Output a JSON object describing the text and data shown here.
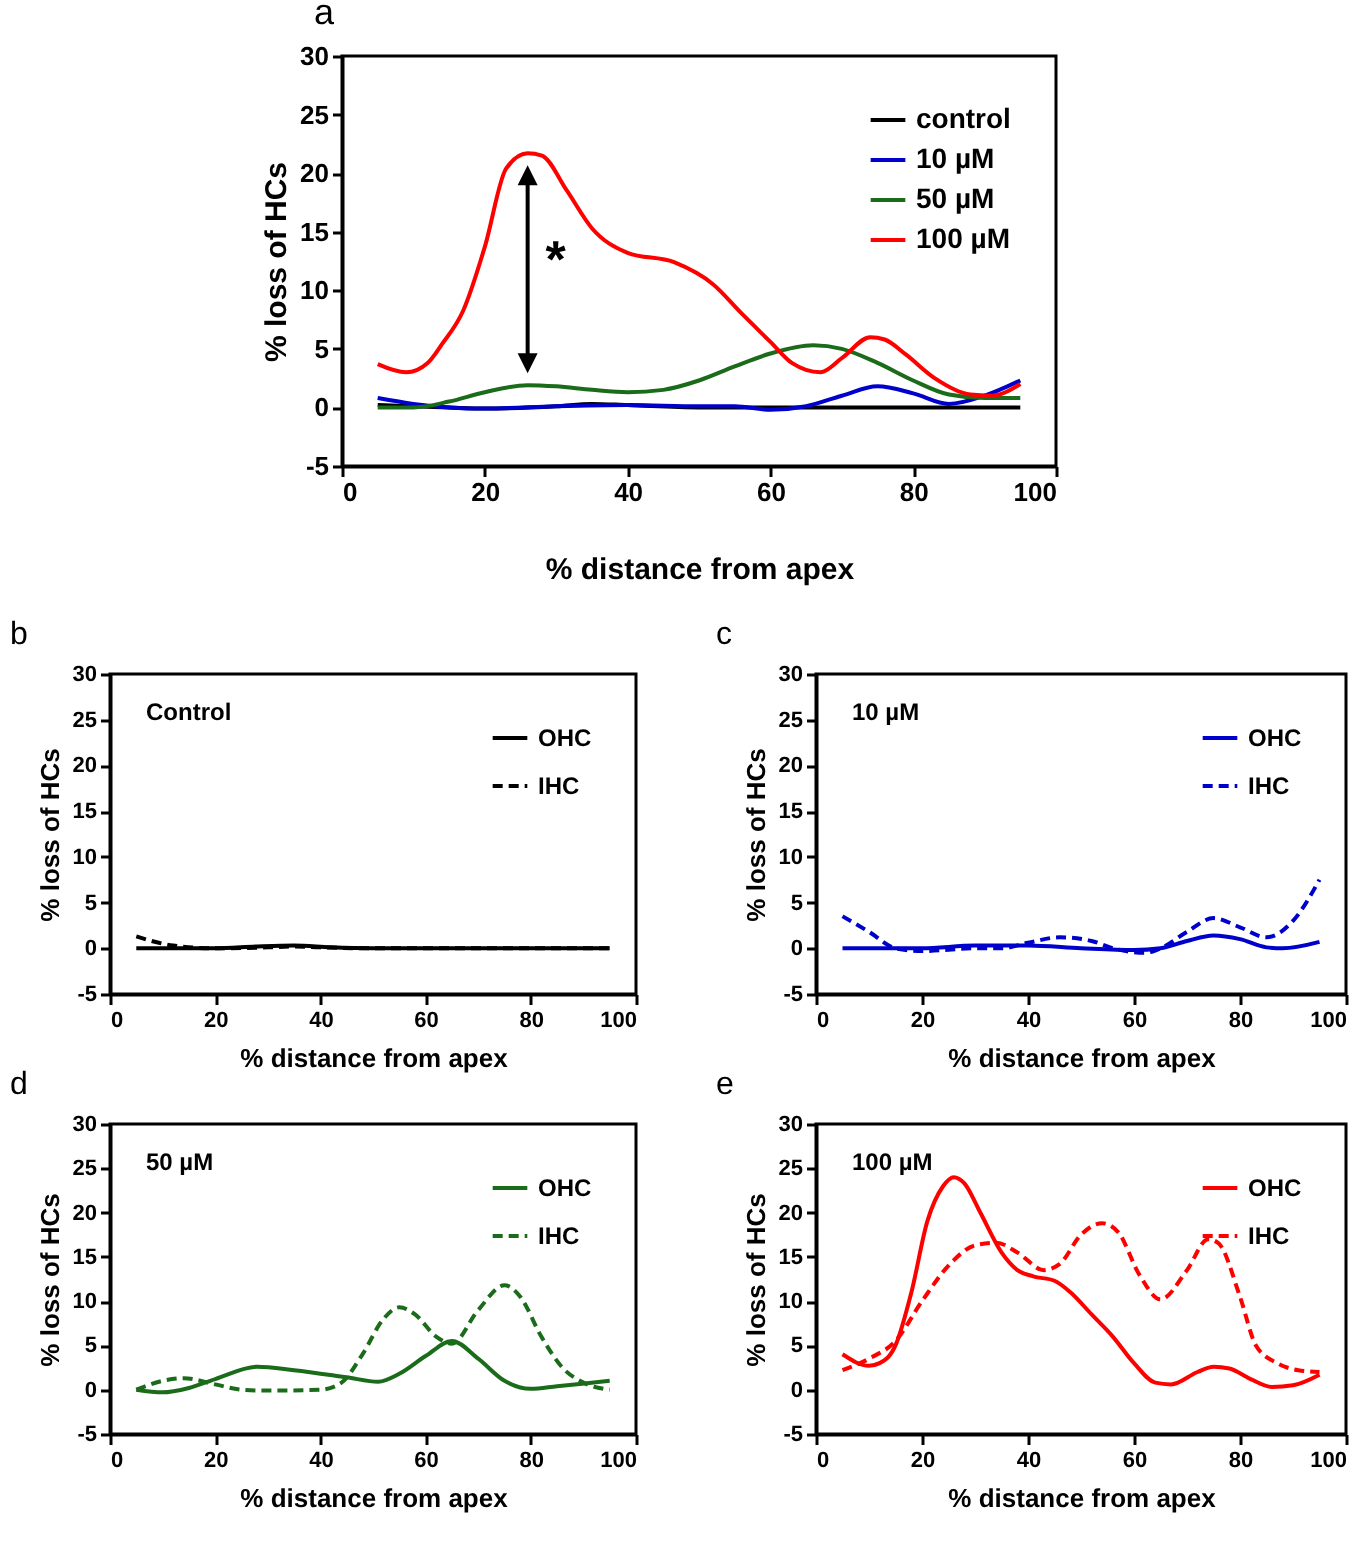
{
  "chart_data": [
    {
      "type": "line",
      "title": "a",
      "xlabel": "% distance from apex",
      "ylabel": "% loss of HCs",
      "xlim": [
        0,
        100
      ],
      "xticks": [
        0,
        20,
        40,
        60,
        80,
        100
      ],
      "ylim": [
        -5,
        30
      ],
      "yticks": [
        -5,
        0,
        5,
        10,
        15,
        20,
        25,
        30
      ],
      "legend": "top right",
      "annotations": [
        "*"
      ],
      "series": [
        {
          "name": "control",
          "color": "#000000",
          "line_style": "solid",
          "x": [
            5,
            15,
            20,
            30,
            35,
            40,
            50,
            95
          ],
          "values": [
            0.2,
            0,
            -0.1,
            0.1,
            0.3,
            0.2,
            0,
            0
          ]
        },
        {
          "name": "10 µM",
          "color": "#0000cc",
          "line_style": "solid",
          "x": [
            5,
            10,
            15,
            20,
            30,
            40,
            50,
            55,
            60,
            65,
            70,
            75,
            80,
            85,
            90,
            95
          ],
          "values": [
            0.8,
            0.3,
            0,
            -0.1,
            0.1,
            0.2,
            0.1,
            0.1,
            -0.2,
            0.1,
            1.0,
            1.8,
            1.2,
            0.3,
            1.0,
            2.3
          ]
        },
        {
          "name": "50 µM",
          "color": "#1a6b1a",
          "line_style": "solid",
          "x": [
            5,
            10,
            15,
            20,
            26,
            30,
            35,
            40,
            45,
            50,
            55,
            60,
            66,
            70,
            75,
            80,
            85,
            90,
            95
          ],
          "values": [
            0,
            0,
            0.5,
            1.3,
            1.9,
            1.8,
            1.5,
            1.3,
            1.5,
            2.3,
            3.5,
            4.6,
            5.3,
            5.0,
            3.8,
            2.3,
            1.1,
            0.8,
            0.8
          ]
        },
        {
          "name": "100 µM",
          "color": "#ff0000",
          "line_style": "solid",
          "x": [
            5,
            9,
            12,
            14,
            17,
            20,
            23,
            26,
            28,
            31.5,
            35,
            40,
            46.5,
            52,
            56,
            60,
            63,
            67,
            70,
            74,
            76,
            79,
            83,
            88,
            91,
            95
          ],
          "values": [
            3.7,
            3.0,
            3.8,
            5.4,
            8.3,
            13.7,
            20.4,
            21.7,
            21.5,
            18.5,
            15.3,
            13.2,
            12.4,
            10.5,
            8,
            5.6,
            3.8,
            3.0,
            4.2,
            6.0,
            5.8,
            4.5,
            2.5,
            1.1,
            1.0,
            2.0
          ]
        }
      ]
    },
    {
      "type": "line",
      "title": "b",
      "xlabel": "% distance from apex",
      "ylabel": "% loss of HCs",
      "xlim": [
        0,
        100
      ],
      "xticks": [
        0,
        20,
        40,
        60,
        80,
        100
      ],
      "ylim": [
        -5,
        30
      ],
      "yticks": [
        -5,
        0,
        5,
        10,
        15,
        20,
        25,
        30
      ],
      "legend": "top right",
      "annotations": [
        "Control"
      ],
      "series": [
        {
          "name": "OHC",
          "color": "#000000",
          "line_style": "solid",
          "x": [
            5,
            20,
            28,
            35,
            42,
            50,
            95
          ],
          "values": [
            0,
            0,
            0.2,
            0.3,
            0.1,
            0,
            0
          ]
        },
        {
          "name": "IHC",
          "color": "#000000",
          "line_style": "dashed",
          "x": [
            5,
            12,
            20,
            30,
            35,
            40,
            50,
            95
          ],
          "values": [
            1.3,
            0.3,
            0,
            0.1,
            0.2,
            0.1,
            0,
            0
          ]
        }
      ]
    },
    {
      "type": "line",
      "title": "c",
      "xlabel": "% distance from apex",
      "ylabel": "% loss of HCs",
      "xlim": [
        0,
        100
      ],
      "xticks": [
        0,
        20,
        40,
        60,
        80,
        100
      ],
      "ylim": [
        -5,
        30
      ],
      "yticks": [
        -5,
        0,
        5,
        10,
        15,
        20,
        25,
        30
      ],
      "legend": "top right",
      "annotations": [
        "10 µM"
      ],
      "series": [
        {
          "name": "OHC",
          "color": "#0000cc",
          "line_style": "solid",
          "x": [
            5,
            20,
            30,
            40,
            50,
            60,
            65,
            70,
            75,
            80,
            85,
            88,
            95
          ],
          "values": [
            0,
            0,
            0.3,
            0.3,
            0,
            -0.2,
            0,
            0.8,
            1.4,
            1.0,
            0.1,
            0,
            0.7
          ]
        },
        {
          "name": "IHC",
          "color": "#0000cc",
          "line_style": "dashed",
          "x": [
            5,
            10,
            15,
            20,
            30,
            35,
            40,
            46,
            52,
            56,
            62,
            65,
            70,
            75,
            80,
            85,
            90,
            95
          ],
          "values": [
            3.5,
            1.8,
            0,
            -0.3,
            0,
            0,
            0.6,
            1.2,
            0.8,
            0,
            -0.5,
            0,
            1.8,
            3.3,
            2.3,
            1.2,
            3.0,
            7.5
          ]
        }
      ]
    },
    {
      "type": "line",
      "title": "d",
      "xlabel": "% distance from apex",
      "ylabel": "% loss of HCs",
      "xlim": [
        0,
        100
      ],
      "xticks": [
        0,
        20,
        40,
        60,
        80,
        100
      ],
      "ylim": [
        -5,
        30
      ],
      "yticks": [
        -5,
        0,
        5,
        10,
        15,
        20,
        25,
        30
      ],
      "legend": "top right",
      "annotations": [
        "50 µM"
      ],
      "series": [
        {
          "name": "OHC",
          "color": "#1a6b1a",
          "line_style": "solid",
          "x": [
            5,
            10,
            15,
            20,
            28,
            35,
            45,
            51,
            55,
            60,
            65,
            70,
            75,
            80,
            85,
            95
          ],
          "values": [
            0,
            -0.3,
            0.2,
            1.2,
            2.6,
            2.2,
            1.4,
            0.9,
            1.8,
            3.8,
            5.5,
            3.5,
            1.0,
            0.1,
            0.4,
            1.0
          ]
        },
        {
          "name": "IHC",
          "color": "#1a6b1a",
          "line_style": "dashed",
          "x": [
            5,
            10,
            14,
            20,
            25,
            30,
            40,
            44,
            48,
            52,
            55,
            58,
            62,
            65,
            70,
            75,
            78,
            82,
            86,
            90,
            95
          ],
          "values": [
            0,
            1.0,
            1.3,
            0.6,
            0,
            -0.1,
            0,
            0.8,
            4,
            8,
            9.3,
            8.5,
            6,
            5.2,
            9,
            11.8,
            10.5,
            6,
            2.5,
            0.8,
            0
          ]
        }
      ]
    },
    {
      "type": "line",
      "title": "e",
      "xlabel": "% distance from apex",
      "ylabel": "% loss of HCs",
      "xlim": [
        0,
        100
      ],
      "xticks": [
        0,
        20,
        40,
        60,
        80,
        100
      ],
      "ylim": [
        -5,
        30
      ],
      "yticks": [
        -5,
        0,
        5,
        10,
        15,
        20,
        25,
        30
      ],
      "legend": "top right",
      "annotations": [
        "100 µM"
      ],
      "series": [
        {
          "name": "OHC",
          "color": "#ff0000",
          "line_style": "solid",
          "x": [
            5,
            10,
            12,
            15,
            18,
            21,
            24,
            26,
            28,
            31,
            35,
            38,
            41,
            45,
            48,
            52,
            56,
            60,
            64,
            67,
            72,
            75,
            78,
            82,
            86,
            90,
            95
          ],
          "values": [
            4.0,
            2.7,
            3,
            5,
            11,
            19,
            23,
            24,
            23.3,
            20,
            15.5,
            13.5,
            12.8,
            12.3,
            11,
            8.5,
            6,
            3,
            0.8,
            0.6,
            2,
            2.6,
            2.4,
            1.2,
            0.3,
            0.5,
            1.7
          ]
        },
        {
          "name": "IHC",
          "color": "#ff0000",
          "line_style": "dashed",
          "x": [
            5,
            10,
            15,
            20,
            25,
            30,
            34,
            38,
            43,
            46,
            50,
            54,
            57,
            61,
            65,
            70,
            74,
            76,
            80,
            83,
            87,
            91,
            95
          ],
          "values": [
            2.2,
            3.5,
            5.5,
            10,
            14,
            16.3,
            16.6,
            15.5,
            13.5,
            14.2,
            17.5,
            18.8,
            17.8,
            13,
            10.2,
            13.5,
            17,
            16.5,
            10.5,
            5,
            3,
            2.2,
            2
          ]
        }
      ]
    }
  ]
}
